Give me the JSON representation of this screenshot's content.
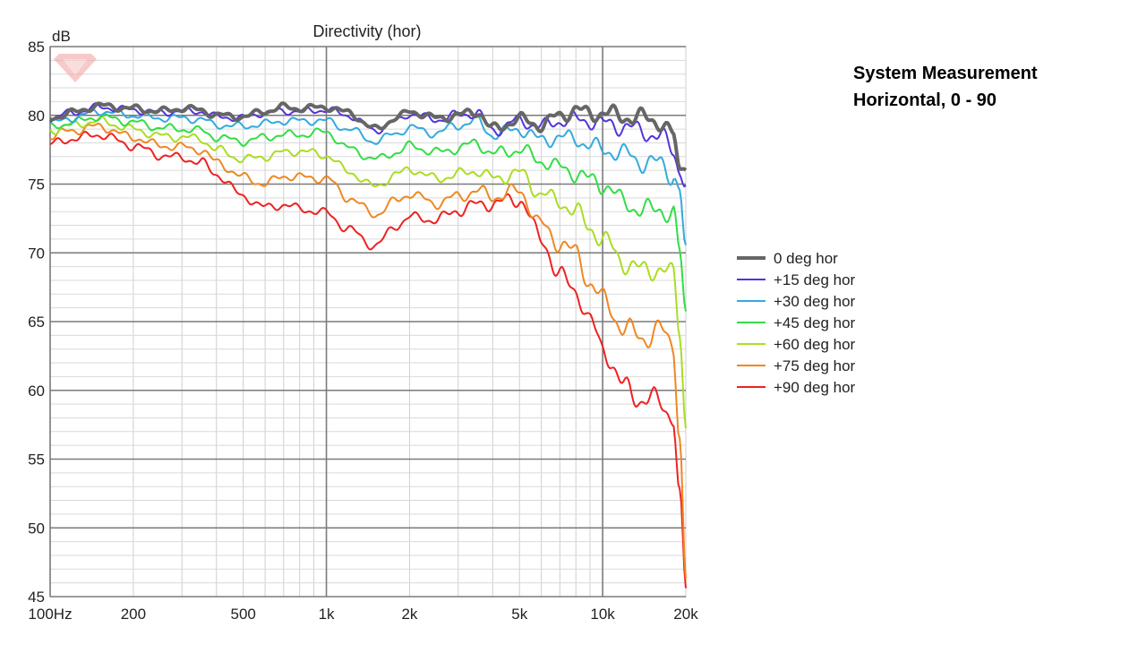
{
  "side_note": {
    "line1": "System Measurement",
    "line2": "Horizontal, 0 - 90"
  },
  "chart_data": {
    "type": "line",
    "title": "Directivity (hor)",
    "ylabel": "dB",
    "xlabel": "",
    "x_scale": "log",
    "xlim": [
      100,
      20000
    ],
    "ylim": [
      45,
      85
    ],
    "grid": true,
    "legend_position": "right",
    "x_ticks": [
      {
        "value": 100,
        "label": "100Hz"
      },
      {
        "value": 200,
        "label": "200"
      },
      {
        "value": 500,
        "label": "500"
      },
      {
        "value": 1000,
        "label": "1k"
      },
      {
        "value": 2000,
        "label": "2k"
      },
      {
        "value": 5000,
        "label": "5k"
      },
      {
        "value": 10000,
        "label": "10k"
      },
      {
        "value": 20000,
        "label": "20k"
      }
    ],
    "y_ticks": [
      45,
      50,
      55,
      60,
      65,
      70,
      75,
      80,
      85
    ],
    "x": [
      100,
      120,
      150,
      200,
      250,
      300,
      350,
      400,
      500,
      600,
      700,
      800,
      1000,
      1200,
      1500,
      1800,
      2000,
      2500,
      3000,
      3500,
      4000,
      5000,
      6000,
      7000,
      8000,
      9000,
      10000,
      12000,
      14000,
      16000,
      18000,
      19000,
      20000
    ],
    "series": [
      {
        "name": "0 deg hor",
        "color": "#666666",
        "width": 4,
        "values": [
          79.8,
          80.2,
          80.7,
          80.5,
          80.3,
          80.5,
          80.4,
          80.0,
          79.9,
          80.3,
          80.6,
          80.5,
          80.6,
          80.2,
          79.0,
          79.8,
          80.3,
          79.8,
          80.0,
          80.3,
          79.0,
          79.7,
          79.3,
          80.0,
          80.4,
          80.1,
          80.2,
          79.9,
          79.8,
          79.6,
          78.5,
          75.8,
          76.8
        ]
      },
      {
        "name": "+15 deg hor",
        "color": "#5533dd",
        "width": 2,
        "values": [
          79.8,
          80.2,
          80.6,
          80.4,
          80.2,
          80.3,
          80.3,
          79.9,
          79.8,
          80.2,
          80.3,
          80.3,
          80.4,
          80.0,
          78.9,
          79.6,
          80.1,
          79.7,
          80.0,
          80.2,
          78.9,
          79.6,
          79.2,
          79.6,
          79.7,
          79.6,
          79.4,
          79.2,
          78.8,
          78.5,
          77.5,
          76.0,
          75.3
        ]
      },
      {
        "name": "+30 deg hor",
        "color": "#33aadd",
        "width": 2,
        "values": [
          79.4,
          79.8,
          80.3,
          80.0,
          79.8,
          79.8,
          79.7,
          79.3,
          79.2,
          79.4,
          79.6,
          79.6,
          79.6,
          79.0,
          78.1,
          78.7,
          79.1,
          78.7,
          79.3,
          79.6,
          78.6,
          79.0,
          78.2,
          78.4,
          78.3,
          77.8,
          77.5,
          77.2,
          76.6,
          76.5,
          75.7,
          74.5,
          70.0
        ]
      },
      {
        "name": "+45 deg hor",
        "color": "#33dd44",
        "width": 2,
        "values": [
          79.1,
          79.5,
          79.9,
          79.5,
          79.1,
          79.0,
          78.9,
          78.4,
          78.1,
          78.4,
          78.6,
          78.6,
          78.8,
          77.6,
          76.8,
          77.3,
          77.8,
          77.3,
          77.6,
          78.0,
          77.2,
          77.5,
          76.7,
          76.2,
          75.8,
          75.3,
          75.0,
          73.7,
          73.0,
          73.3,
          72.7,
          70.0,
          65.5
        ]
      },
      {
        "name": "+60 deg hor",
        "color": "#aadd22",
        "width": 2,
        "values": [
          78.9,
          79.3,
          79.6,
          79.0,
          78.5,
          78.4,
          78.3,
          77.5,
          76.8,
          77.0,
          77.3,
          77.4,
          77.1,
          75.9,
          74.8,
          75.7,
          76.1,
          75.4,
          75.7,
          76.0,
          75.4,
          75.8,
          74.3,
          73.7,
          73.0,
          71.8,
          71.0,
          69.3,
          68.7,
          68.9,
          68.3,
          64.5,
          57.5
        ]
      },
      {
        "name": "+75 deg hor",
        "color": "#ee8822",
        "width": 2,
        "values": [
          78.5,
          78.9,
          79.2,
          78.4,
          77.8,
          77.7,
          77.5,
          76.6,
          75.5,
          75.0,
          75.6,
          75.5,
          75.4,
          74.0,
          72.8,
          73.8,
          74.3,
          73.6,
          74.1,
          74.5,
          74.1,
          74.5,
          72.0,
          70.7,
          70.0,
          67.8,
          66.6,
          64.5,
          63.8,
          64.4,
          63.3,
          57.0,
          46.0
        ]
      },
      {
        "name": "+90 deg hor",
        "color": "#ee2222",
        "width": 2,
        "values": [
          77.9,
          78.3,
          78.6,
          77.8,
          77.1,
          76.9,
          76.6,
          75.7,
          74.1,
          73.3,
          73.5,
          73.2,
          72.9,
          71.7,
          70.5,
          72.0,
          72.6,
          72.4,
          73.1,
          73.5,
          73.6,
          73.9,
          71.0,
          68.3,
          67.3,
          65.0,
          63.1,
          60.2,
          59.3,
          59.2,
          58.2,
          52.0,
          45.3
        ]
      }
    ]
  }
}
